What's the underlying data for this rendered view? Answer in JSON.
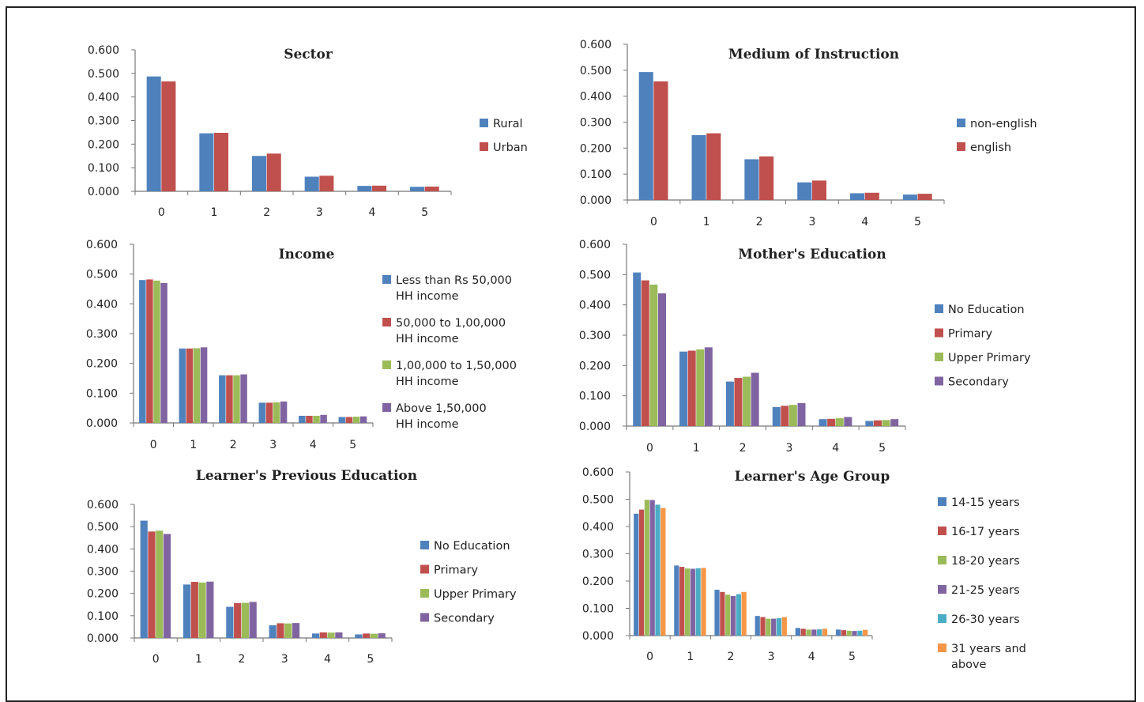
{
  "colors": [
    "#4F81BD",
    "#C0504D",
    "#9BBB59",
    "#8064A2",
    "#4BACC6",
    "#F79646"
  ],
  "chart_data": [
    {
      "type": "bar",
      "title": "Sector",
      "categories": [
        "0",
        "1",
        "2",
        "3",
        "4",
        "5"
      ],
      "yticks": [
        "0.600",
        "0.500",
        "0.400",
        "0.300",
        "0.200",
        "0.100",
        "0.000"
      ],
      "ylim": [
        0,
        0.6
      ],
      "series": [
        {
          "name": "Rural",
          "values": [
            0.487,
            0.246,
            0.15,
            0.062,
            0.023,
            0.019
          ]
        },
        {
          "name": "Urban",
          "values": [
            0.466,
            0.248,
            0.16,
            0.066,
            0.024,
            0.02
          ]
        }
      ]
    },
    {
      "type": "bar",
      "title": "Medium of Instruction",
      "categories": [
        "0",
        "1",
        "2",
        "3",
        "4",
        "5"
      ],
      "yticks": [
        "0.600",
        "0.500",
        "0.400",
        "0.300",
        "0.200",
        "0.100",
        "0.000"
      ],
      "ylim": [
        0,
        0.6
      ],
      "series": [
        {
          "name": "non-english",
          "values": [
            0.493,
            0.25,
            0.157,
            0.068,
            0.026,
            0.021
          ]
        },
        {
          "name": "english",
          "values": [
            0.457,
            0.257,
            0.168,
            0.075,
            0.028,
            0.024
          ]
        }
      ]
    },
    {
      "type": "bar",
      "title": "Income",
      "categories": [
        "0",
        "1",
        "2",
        "3",
        "4",
        "5"
      ],
      "yticks": [
        "0.600",
        "0.500",
        "0.400",
        "0.300",
        "0.200",
        "0.100",
        "0.000"
      ],
      "ylim": [
        0,
        0.6
      ],
      "series": [
        {
          "name": "Less than Rs 50,000 HH income",
          "values": [
            0.48,
            0.25,
            0.16,
            0.068,
            0.024,
            0.02
          ]
        },
        {
          "name": "50,000 to 1,00,000 HH income",
          "values": [
            0.482,
            0.25,
            0.16,
            0.068,
            0.024,
            0.02
          ]
        },
        {
          "name": "1,00,000 to 1,50,000 HH income",
          "values": [
            0.478,
            0.251,
            0.16,
            0.069,
            0.024,
            0.021
          ]
        },
        {
          "name": "Above 1,50,000 HH income",
          "values": [
            0.47,
            0.254,
            0.163,
            0.072,
            0.027,
            0.022
          ]
        }
      ]
    },
    {
      "type": "bar",
      "title": "Mother's Education",
      "categories": [
        "0",
        "1",
        "2",
        "3",
        "4",
        "5"
      ],
      "yticks": [
        "0.600",
        "0.500",
        "0.400",
        "0.300",
        "0.200",
        "0.100",
        "0.000"
      ],
      "ylim": [
        0,
        0.6
      ],
      "series": [
        {
          "name": "No Education",
          "values": [
            0.507,
            0.246,
            0.147,
            0.063,
            0.023,
            0.017
          ]
        },
        {
          "name": "Primary",
          "values": [
            0.481,
            0.249,
            0.159,
            0.067,
            0.024,
            0.019
          ]
        },
        {
          "name": "Upper Primary",
          "values": [
            0.467,
            0.253,
            0.163,
            0.07,
            0.026,
            0.02
          ]
        },
        {
          "name": "Secondary",
          "values": [
            0.438,
            0.26,
            0.176,
            0.076,
            0.03,
            0.023
          ]
        }
      ]
    },
    {
      "type": "bar",
      "title": "Learner's Previous Education",
      "categories": [
        "0",
        "1",
        "2",
        "3",
        "4",
        "5"
      ],
      "yticks": [
        "0.600",
        "0.500",
        "0.400",
        "0.300",
        "0.200",
        "0.100",
        "0.000"
      ],
      "ylim": [
        0,
        0.6
      ],
      "series": [
        {
          "name": "No Education",
          "values": [
            0.527,
            0.24,
            0.14,
            0.057,
            0.02,
            0.016
          ]
        },
        {
          "name": "Primary",
          "values": [
            0.478,
            0.252,
            0.157,
            0.066,
            0.025,
            0.02
          ]
        },
        {
          "name": "Upper Primary",
          "values": [
            0.482,
            0.249,
            0.158,
            0.065,
            0.024,
            0.019
          ]
        },
        {
          "name": "Secondary",
          "values": [
            0.467,
            0.253,
            0.162,
            0.067,
            0.025,
            0.021
          ]
        }
      ]
    },
    {
      "type": "bar",
      "title": "Learner's Age Group",
      "categories": [
        "0",
        "1",
        "2",
        "3",
        "4",
        "5"
      ],
      "yticks": [
        "0.600",
        "0.500",
        "0.400",
        "0.300",
        "0.200",
        "0.100",
        "0.000"
      ],
      "ylim": [
        0,
        0.6
      ],
      "series": [
        {
          "name": "14-15 years",
          "values": [
            0.447,
            0.257,
            0.168,
            0.072,
            0.028,
            0.022
          ]
        },
        {
          "name": "16-17 years",
          "values": [
            0.462,
            0.252,
            0.16,
            0.068,
            0.025,
            0.02
          ]
        },
        {
          "name": "18-20 years",
          "values": [
            0.498,
            0.246,
            0.15,
            0.062,
            0.022,
            0.018
          ]
        },
        {
          "name": "21-25 years",
          "values": [
            0.497,
            0.245,
            0.145,
            0.062,
            0.022,
            0.017
          ]
        },
        {
          "name": "26-30 years",
          "values": [
            0.48,
            0.247,
            0.152,
            0.064,
            0.023,
            0.018
          ]
        },
        {
          "name": "31 years and above",
          "values": [
            0.468,
            0.248,
            0.16,
            0.068,
            0.025,
            0.021
          ]
        }
      ]
    }
  ]
}
